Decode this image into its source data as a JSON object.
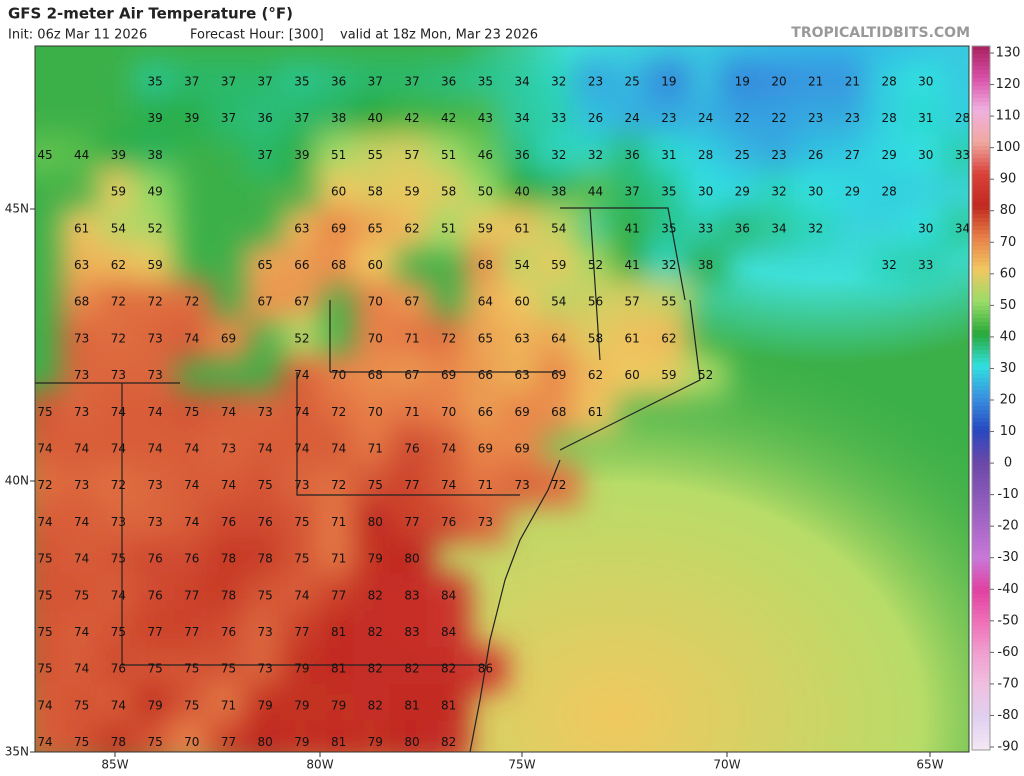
{
  "header": {
    "title": "GFS 2-meter Air Temperature (°F)",
    "init": "Init: 06z Mar 11 2026",
    "forecast_hour": "Forecast Hour: [300]",
    "valid": "valid at 18z Mon, Mar 23 2026",
    "brand": "TROPICALTIDBITS.COM"
  },
  "lat_labels": [
    "45N",
    "40N",
    "35N"
  ],
  "lon_labels": [
    "85W",
    "80W",
    "75W",
    "70W",
    "65W"
  ],
  "colorbar": {
    "ticks": [
      130,
      120,
      110,
      100,
      90,
      80,
      70,
      60,
      50,
      40,
      30,
      20,
      10,
      0,
      -10,
      -20,
      -30,
      -40,
      -50,
      -60,
      -70,
      -80,
      -90
    ],
    "colors": [
      "#a8205e",
      "#d850a8",
      "#f0b0e0",
      "#f0a8a0",
      "#d84038",
      "#c02820",
      "#e88048",
      "#f0c860",
      "#98dc68",
      "#28a838",
      "#30e0e0",
      "#3890e0",
      "#2848c0",
      "#6a48a8",
      "#8858b8",
      "#a868c8",
      "#c878d8",
      "#e040a0",
      "#f070b8",
      "#f0a0d0",
      "#f0c0e0",
      "#e0d0f0",
      "#f4e8f4"
    ]
  },
  "grid_values": [
    [
      null,
      null,
      null,
      35,
      37,
      37,
      37,
      35,
      36,
      37,
      37,
      36,
      35,
      34,
      32,
      23,
      25,
      19,
      null,
      19,
      20,
      21,
      21,
      28,
      30
    ],
    [
      null,
      null,
      null,
      39,
      39,
      37,
      36,
      37,
      38,
      40,
      42,
      42,
      43,
      34,
      33,
      26,
      24,
      23,
      24,
      22,
      22,
      23,
      23,
      28,
      31,
      28
    ],
    [
      45,
      44,
      39,
      38,
      null,
      null,
      37,
      39,
      51,
      55,
      57,
      51,
      46,
      36,
      32,
      32,
      36,
      31,
      28,
      25,
      23,
      26,
      27,
      29,
      30,
      33
    ],
    [
      null,
      null,
      59,
      49,
      null,
      null,
      null,
      null,
      60,
      58,
      59,
      58,
      50,
      40,
      38,
      44,
      37,
      35,
      30,
      29,
      32,
      30,
      29,
      28
    ],
    [
      null,
      61,
      54,
      52,
      null,
      null,
      null,
      63,
      69,
      65,
      62,
      51,
      59,
      61,
      54,
      null,
      41,
      35,
      33,
      36,
      34,
      32,
      null,
      null,
      30,
      34
    ],
    [
      null,
      63,
      62,
      59,
      null,
      null,
      65,
      66,
      68,
      60,
      null,
      null,
      68,
      54,
      59,
      52,
      41,
      32,
      38,
      null,
      null,
      null,
      null,
      32,
      33
    ],
    [
      null,
      68,
      72,
      72,
      72,
      null,
      67,
      67,
      null,
      70,
      67,
      null,
      64,
      60,
      54,
      56,
      57,
      55
    ],
    [
      null,
      73,
      72,
      73,
      74,
      69,
      null,
      52,
      null,
      70,
      71,
      72,
      65,
      63,
      64,
      58,
      61,
      62
    ],
    [
      null,
      73,
      73,
      73,
      null,
      null,
      null,
      74,
      70,
      68,
      67,
      69,
      66,
      63,
      69,
      62,
      60,
      59,
      52
    ],
    [
      75,
      73,
      74,
      74,
      75,
      74,
      73,
      74,
      72,
      70,
      71,
      70,
      66,
      69,
      68,
      61
    ],
    [
      74,
      74,
      74,
      74,
      74,
      73,
      74,
      74,
      74,
      71,
      76,
      74,
      69,
      69
    ],
    [
      72,
      73,
      72,
      73,
      74,
      74,
      75,
      73,
      72,
      75,
      77,
      74,
      71,
      73,
      72
    ],
    [
      74,
      74,
      73,
      73,
      74,
      76,
      76,
      75,
      71,
      80,
      77,
      76,
      73
    ],
    [
      75,
      74,
      75,
      76,
      76,
      78,
      78,
      75,
      71,
      79,
      80
    ],
    [
      75,
      75,
      74,
      76,
      77,
      78,
      75,
      74,
      77,
      82,
      83,
      84
    ],
    [
      75,
      74,
      75,
      77,
      77,
      76,
      73,
      77,
      81,
      82,
      83,
      84
    ],
    [
      75,
      74,
      76,
      75,
      75,
      75,
      73,
      79,
      81,
      82,
      82,
      82,
      86
    ],
    [
      74,
      75,
      74,
      79,
      75,
      71,
      79,
      79,
      79,
      82,
      81,
      81
    ],
    [
      74,
      75,
      78,
      75,
      70,
      77,
      80,
      79,
      81,
      79,
      80,
      82
    ]
  ]
}
